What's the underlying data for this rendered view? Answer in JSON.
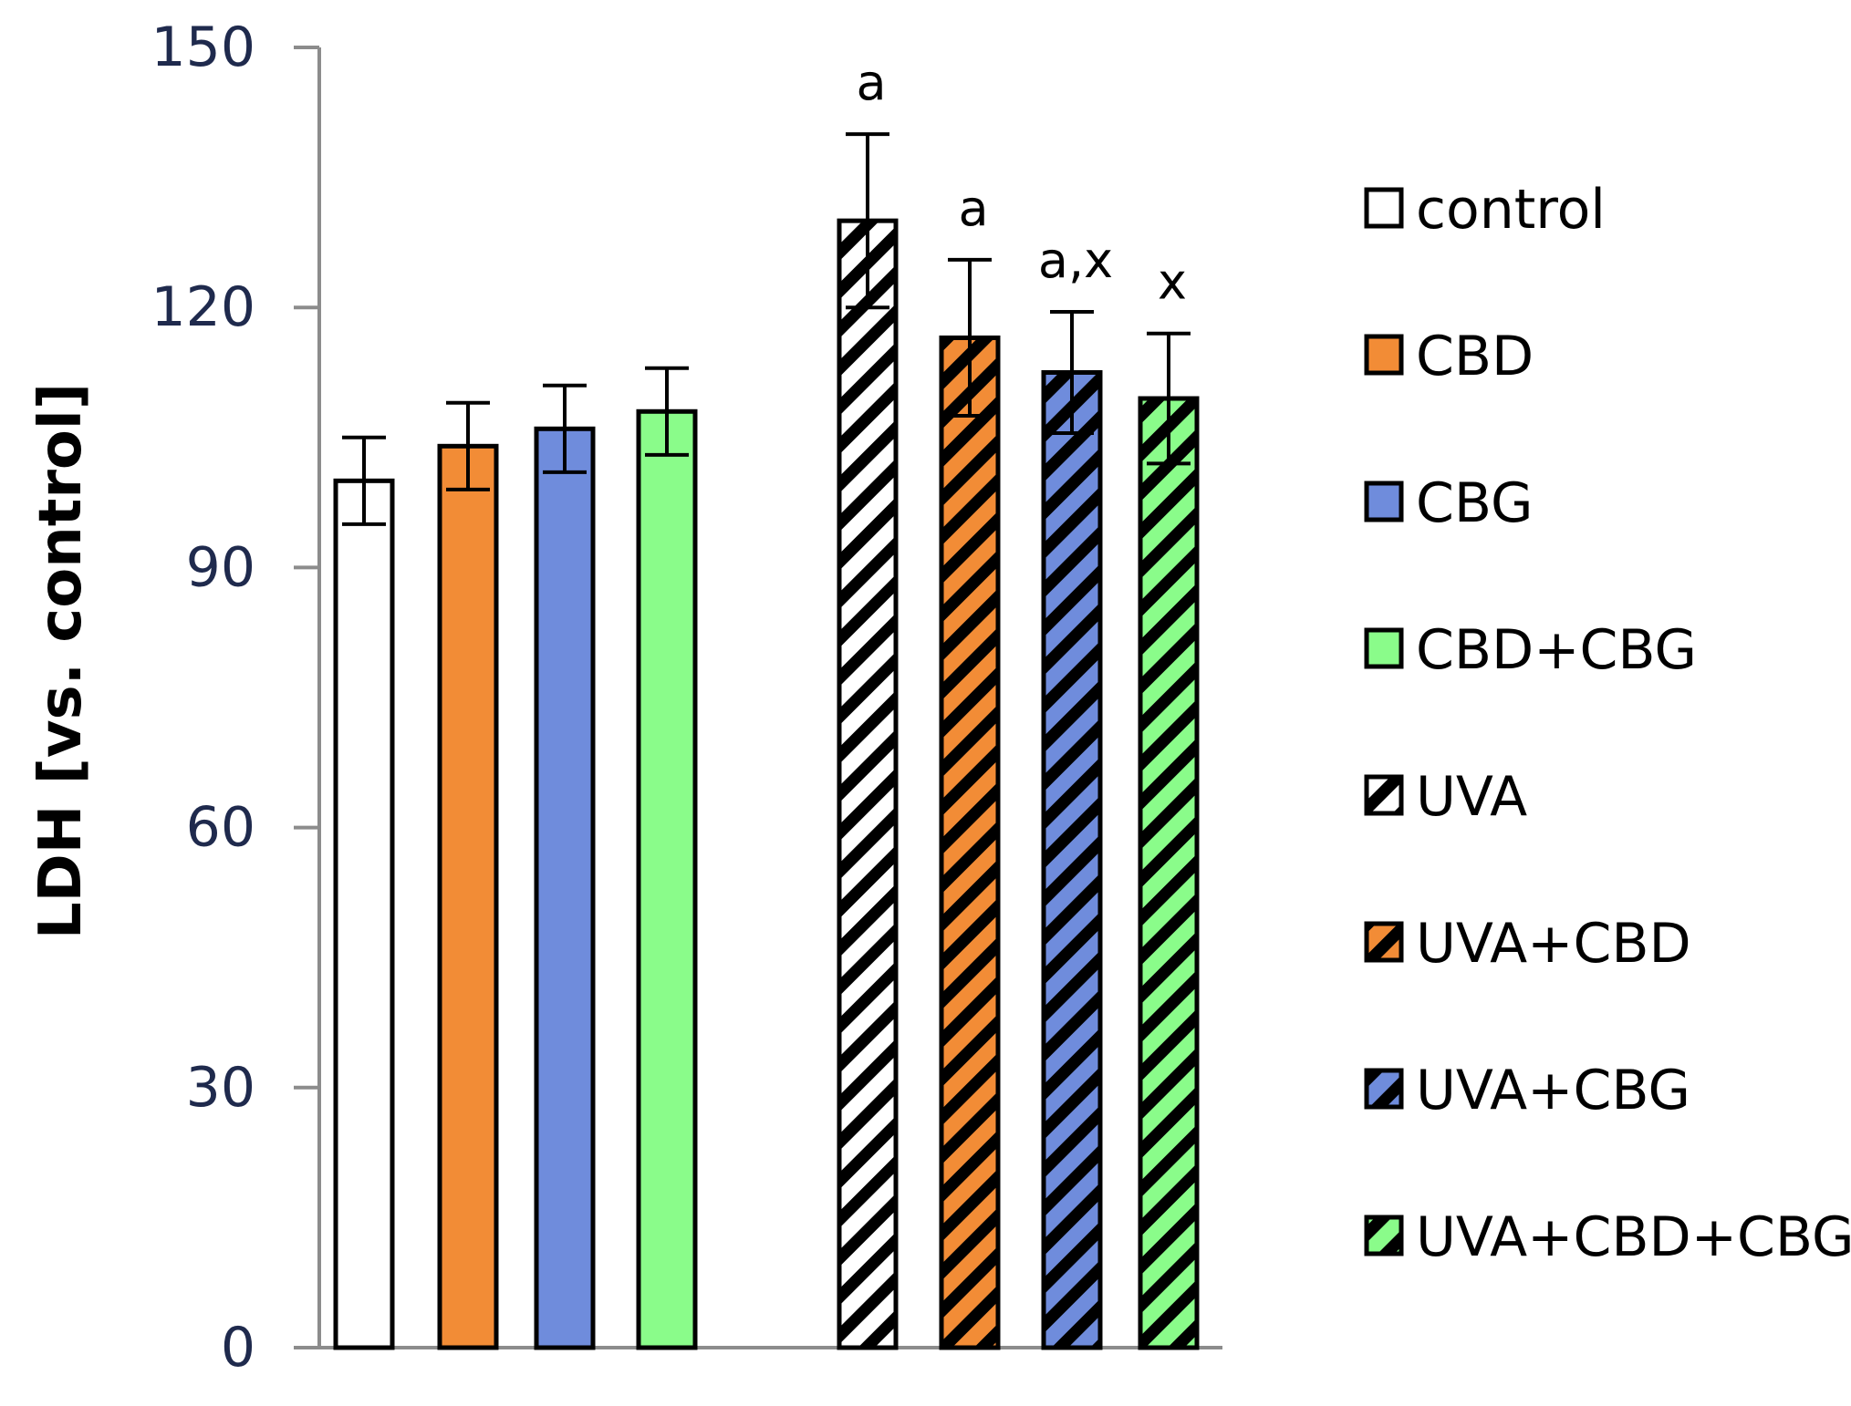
{
  "chart_data": {
    "type": "bar",
    "title": "",
    "xlabel": "",
    "ylabel": "LDH [vs. control]",
    "ylim": [
      0,
      150
    ],
    "yticks": [
      "0",
      "30",
      "60",
      "90",
      "120",
      "150"
    ],
    "grid": false,
    "legend_position": "right",
    "categories": [
      "control",
      "CBD",
      "CBG",
      "CBD+CBG",
      "UVA",
      "UVA+CBD",
      "UVA+CBG",
      "UVA+CBD+CBG"
    ],
    "values": [
      100,
      104,
      106,
      108,
      130,
      116.5,
      112.5,
      109.5
    ],
    "errors": [
      5,
      5,
      5,
      5,
      10,
      9,
      7,
      7.5
    ],
    "annotations": [
      "",
      "",
      "",
      "",
      "a",
      "a",
      "a,x",
      "x"
    ],
    "colors": [
      "#ffffff",
      "#f28c36",
      "#6f8cdc",
      "#8afc8a",
      "#ffffff",
      "#f28c36",
      "#6f8cdc",
      "#8afc8a"
    ],
    "hatched": [
      false,
      false,
      false,
      false,
      true,
      true,
      true,
      true
    ]
  }
}
